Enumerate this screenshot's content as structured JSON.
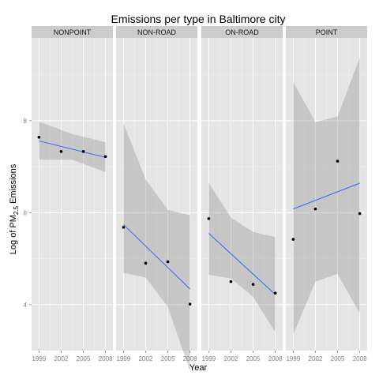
{
  "chart_data": {
    "type": "scatter",
    "title": "Emissions per type in Baltimore city",
    "xlabel": "Year",
    "ylabel_main": "Log of PM",
    "ylabel_sub": "2.5",
    "ylabel_tail": " Emissions",
    "x_ticks": [
      "1999",
      "2002",
      "2005",
      "2008"
    ],
    "y_ticks": [
      {
        "value": 4,
        "label": "4"
      },
      {
        "value": 6,
        "label": "6"
      },
      {
        "value": 8,
        "label": "8"
      }
    ],
    "ylim": [
      3.0,
      9.8
    ],
    "xlim": [
      1998.0,
      2009.0
    ],
    "grid": true,
    "panels": [
      {
        "name": "NONPOINT",
        "points": [
          {
            "x": 1999,
            "y": 7.64
          },
          {
            "x": 2002,
            "y": 7.33
          },
          {
            "x": 2005,
            "y": 7.33
          },
          {
            "x": 2008,
            "y": 7.22
          }
        ],
        "fit": {
          "y_start": 7.56,
          "y_end": 7.2
        },
        "band_upper": [
          7.98,
          7.71,
          7.53
        ],
        "band_lower": [
          7.15,
          7.15,
          6.88
        ]
      },
      {
        "name": "NON-ROAD",
        "points": [
          {
            "x": 1999,
            "y": 5.68
          },
          {
            "x": 2002,
            "y": 4.9
          },
          {
            "x": 2005,
            "y": 4.93
          },
          {
            "x": 2008,
            "y": 4.01
          }
        ],
        "fit": {
          "y_start": 5.74,
          "y_end": 4.34
        },
        "band_upper": [
          7.94,
          6.72,
          6.06,
          5.94
        ],
        "band_lower": [
          4.69,
          4.59,
          3.95,
          2.56
        ]
      },
      {
        "name": "ON-ROAD",
        "points": [
          {
            "x": 1999,
            "y": 5.87
          },
          {
            "x": 2002,
            "y": 4.5
          },
          {
            "x": 2005,
            "y": 4.44
          },
          {
            "x": 2008,
            "y": 4.25
          }
        ],
        "fit": {
          "y_start": 5.55,
          "y_end": 4.22
        },
        "band_upper": [
          6.65,
          5.89,
          5.58,
          5.47
        ],
        "band_lower": [
          4.65,
          4.57,
          4.17,
          3.4
        ]
      },
      {
        "name": "POINT",
        "points": [
          {
            "x": 1999,
            "y": 5.42
          },
          {
            "x": 2002,
            "y": 6.08
          },
          {
            "x": 2005,
            "y": 7.12
          },
          {
            "x": 2008,
            "y": 5.98
          }
        ],
        "fit": {
          "y_start": 6.08,
          "y_end": 6.64
        },
        "band_upper": [
          8.84,
          7.97,
          8.09,
          9.37
        ],
        "band_lower": [
          3.35,
          4.5,
          4.67,
          3.81
        ]
      }
    ]
  }
}
